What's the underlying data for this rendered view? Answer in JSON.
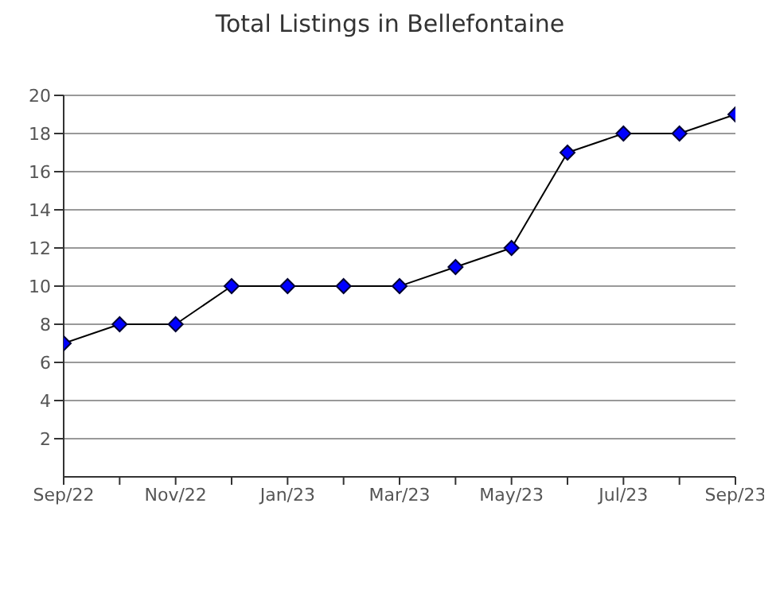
{
  "chart_data": {
    "type": "line",
    "title": "Total Listings in Bellefontaine",
    "categories": [
      "Sep/22",
      null,
      "Nov/22",
      null,
      "Jan/23",
      null,
      "Mar/23",
      null,
      "May/23",
      null,
      "Jul/23",
      null,
      "Sep/23"
    ],
    "series": [
      {
        "color": "#0000ff",
        "values": [
          7,
          8,
          8,
          10,
          10,
          10,
          10,
          11,
          12,
          17,
          18,
          18,
          19
        ]
      }
    ],
    "ylim": [
      0,
      20
    ],
    "yticks": [
      2,
      4,
      6,
      8,
      10,
      12,
      14,
      16,
      18,
      20
    ],
    "grid": "y",
    "marker": "diamond",
    "line_style": "solid",
    "legend": false
  }
}
